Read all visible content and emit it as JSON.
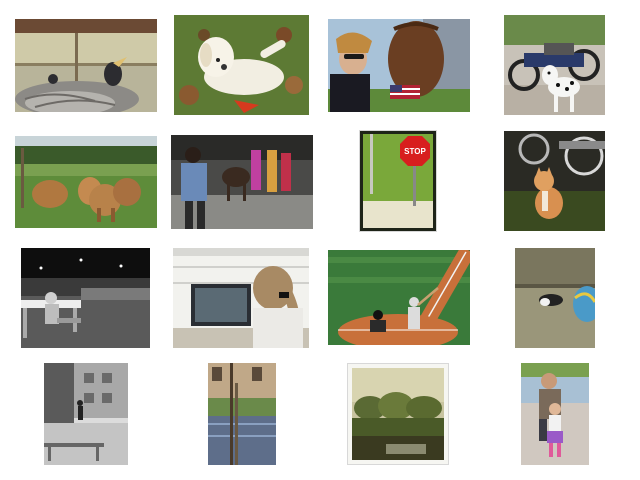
{
  "gallery": {
    "thumbnails": [
      {
        "subject": "bird-nest"
      },
      {
        "subject": "dog-on-leaves"
      },
      {
        "subject": "woman-baseball-glove"
      },
      {
        "subject": "dalmatian-motorcycles"
      },
      {
        "subject": "highland-cattle"
      },
      {
        "subject": "people-with-cow"
      },
      {
        "subject": "stop-sign"
      },
      {
        "subject": "cat-by-motorcycles"
      },
      {
        "subject": "bench-night-crowd"
      },
      {
        "subject": "woman-at-computer"
      },
      {
        "subject": "baseball-batter"
      },
      {
        "subject": "cat-on-couch"
      },
      {
        "subject": "street-skateboarder"
      },
      {
        "subject": "balcony-building"
      },
      {
        "subject": "park-trees"
      },
      {
        "subject": "man-with-child"
      }
    ]
  }
}
